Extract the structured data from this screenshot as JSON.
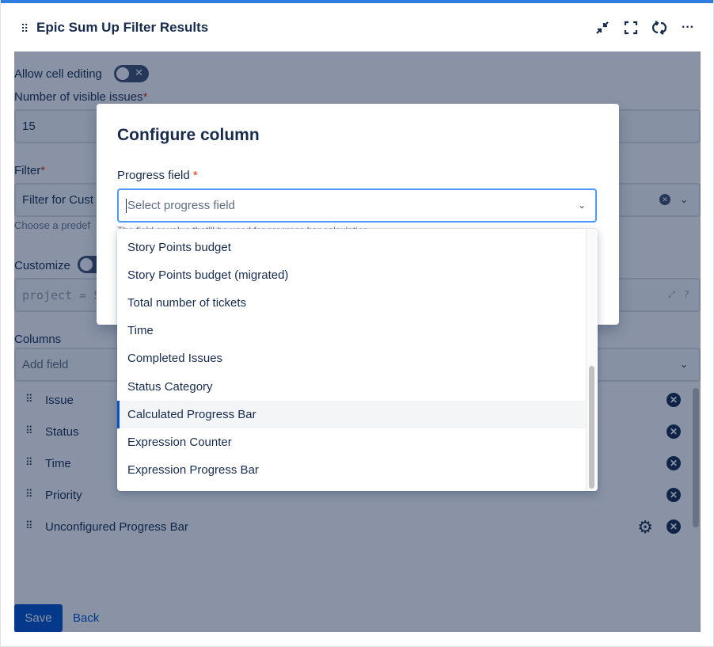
{
  "header": {
    "title": "Epic Sum Up Filter Results",
    "icons": [
      "drag-handle-icon",
      "minimize-icon",
      "fullscreen-icon",
      "refresh-icon",
      "more-icon"
    ]
  },
  "form": {
    "allow_cell_editing": "Allow cell editing",
    "allow_cell_editing_on": false,
    "visible_issues_label": "Number of visible issues",
    "visible_issues_value": "15",
    "filter_label": "Filter",
    "filter_value": "Filter for Cust",
    "filter_helper": "Choose a predef",
    "customize_label": "Customize",
    "jql_placeholder": "project = S",
    "columns_label": "Columns",
    "add_field_placeholder": "Add field",
    "columns": [
      {
        "name": "Issue"
      },
      {
        "name": "Status"
      },
      {
        "name": "Time"
      },
      {
        "name": "Priority"
      },
      {
        "name": "Unconfigured Progress Bar",
        "configurable": true
      }
    ],
    "save": "Save",
    "back": "Back",
    "required_mark": "*"
  },
  "modal": {
    "title": "Configure column",
    "progress_label": "Progress field",
    "placeholder": "Select progress field",
    "helper": "The field or value that'll be used for progress bar calculation",
    "options": [
      "Story Points budget",
      "Story Points budget (migrated)",
      "Total number of tickets",
      "Time",
      "Completed Issues",
      "Status Category",
      "Calculated Progress Bar",
      "Expression Counter",
      "Expression Progress Bar"
    ],
    "highlighted": "Calculated Progress Bar"
  },
  "colors": {
    "accent": "#2f7de1",
    "focus": "#4c9aff",
    "primary": "#0052cc",
    "text": "#172b4d"
  }
}
